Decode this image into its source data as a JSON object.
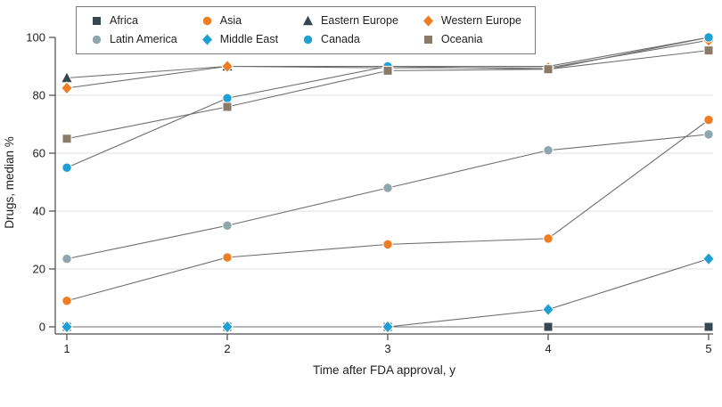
{
  "chart_data": {
    "type": "line",
    "x": [
      1,
      2,
      3,
      4,
      5
    ],
    "xlabel": "Time after FDA approval, y",
    "ylabel": "Drugs, median %",
    "ylim": [
      0,
      100
    ],
    "yticks": [
      0,
      20,
      40,
      60,
      80,
      100
    ],
    "gridlines": [
      20,
      40,
      60,
      80
    ],
    "grid": true,
    "legend_position": "top-left",
    "colors": {
      "line": "#6E6E6E",
      "grid": "#E2E2E2",
      "axis": "#4A4A4A",
      "text": "#1F1F1F"
    },
    "series": [
      {
        "name": "Africa",
        "marker": "square",
        "color": "#37474F",
        "values": [
          0,
          0,
          0,
          0,
          0
        ]
      },
      {
        "name": "Asia",
        "marker": "circle",
        "color": "#EE7D23",
        "values": [
          9,
          24,
          28.5,
          30.5,
          71.5
        ]
      },
      {
        "name": "Eastern Europe",
        "marker": "triangle",
        "color": "#37474F",
        "values": [
          86,
          90,
          90,
          90,
          100
        ]
      },
      {
        "name": "Western Europe",
        "marker": "diamond",
        "color": "#EE7D23",
        "values": [
          82.5,
          90,
          89.5,
          89.5,
          99
        ]
      },
      {
        "name": "Latin America",
        "marker": "circle",
        "color": "#8FA6AD",
        "values": [
          23.5,
          35,
          48,
          61,
          66.5
        ]
      },
      {
        "name": "Middle East",
        "marker": "diamond",
        "color": "#1FA0D5",
        "values": [
          0,
          0,
          0,
          6,
          23.5
        ]
      },
      {
        "name": "Canada",
        "marker": "circle",
        "color": "#1FA0D5",
        "values": [
          55,
          79,
          90,
          89,
          100
        ]
      },
      {
        "name": "Oceania",
        "marker": "square",
        "color": "#8A7A67",
        "values": [
          65,
          76,
          88.5,
          89,
          95.5
        ]
      }
    ]
  }
}
